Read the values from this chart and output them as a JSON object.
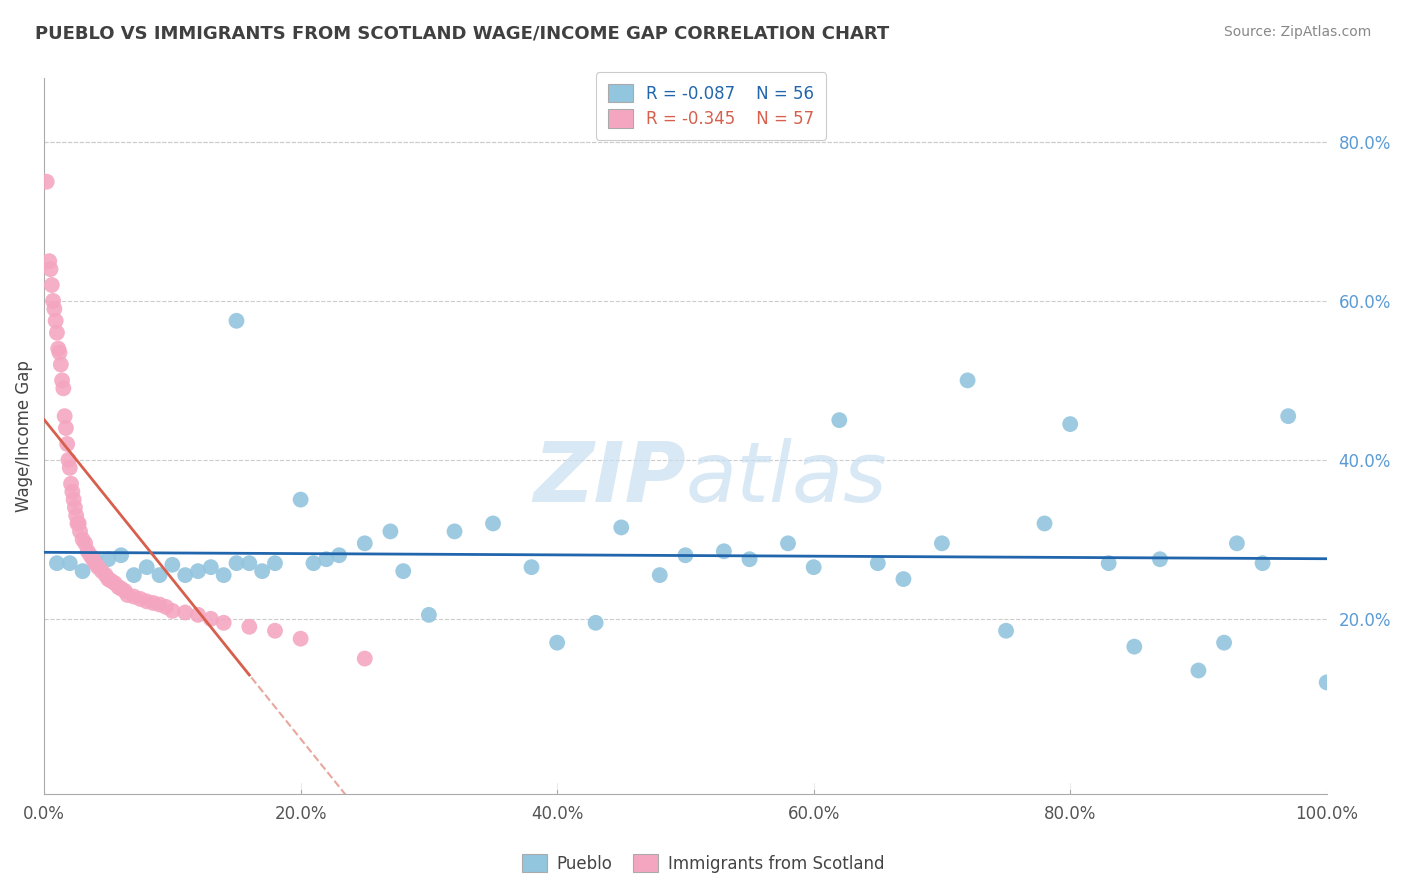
{
  "title": "PUEBLO VS IMMIGRANTS FROM SCOTLAND WAGE/INCOME GAP CORRELATION CHART",
  "source": "Source: ZipAtlas.com",
  "ylabel": "Wage/Income Gap",
  "xlim": [
    0.0,
    1.0
  ],
  "ylim": [
    -0.02,
    0.88
  ],
  "x_ticks": [
    0.0,
    0.2,
    0.4,
    0.6,
    0.8,
    1.0
  ],
  "x_tick_labels": [
    "0.0%",
    "20.0%",
    "40.0%",
    "60.0%",
    "80.0%",
    "100.0%"
  ],
  "y_ticks": [
    0.2,
    0.4,
    0.6,
    0.8
  ],
  "y_tick_labels": [
    "20.0%",
    "40.0%",
    "60.0%",
    "80.0%"
  ],
  "legend_blue_label": "Pueblo",
  "legend_pink_label": "Immigrants from Scotland",
  "R_blue": "-0.087",
  "N_blue": "56",
  "R_pink": "-0.345",
  "N_pink": "57",
  "blue_color": "#92c5de",
  "pink_color": "#f4a6c0",
  "blue_line_color": "#2166ac",
  "pink_line_color": "#d6604d",
  "watermark_color": "#c8dff0",
  "blue_x": [
    0.01,
    0.02,
    0.03,
    0.04,
    0.05,
    0.06,
    0.07,
    0.08,
    0.09,
    0.1,
    0.11,
    0.12,
    0.13,
    0.14,
    0.15,
    0.15,
    0.16,
    0.17,
    0.18,
    0.2,
    0.21,
    0.22,
    0.23,
    0.25,
    0.27,
    0.28,
    0.3,
    0.32,
    0.35,
    0.38,
    0.4,
    0.43,
    0.45,
    0.48,
    0.5,
    0.53,
    0.55,
    0.58,
    0.6,
    0.62,
    0.65,
    0.67,
    0.7,
    0.72,
    0.75,
    0.78,
    0.8,
    0.83,
    0.85,
    0.87,
    0.9,
    0.92,
    0.93,
    0.95,
    0.97,
    1.0
  ],
  "blue_y": [
    0.27,
    0.27,
    0.26,
    0.275,
    0.275,
    0.28,
    0.255,
    0.265,
    0.255,
    0.268,
    0.255,
    0.26,
    0.265,
    0.255,
    0.27,
    0.575,
    0.27,
    0.26,
    0.27,
    0.35,
    0.27,
    0.275,
    0.28,
    0.295,
    0.31,
    0.26,
    0.205,
    0.31,
    0.32,
    0.265,
    0.17,
    0.195,
    0.315,
    0.255,
    0.28,
    0.285,
    0.275,
    0.295,
    0.265,
    0.45,
    0.27,
    0.25,
    0.295,
    0.5,
    0.185,
    0.32,
    0.445,
    0.27,
    0.165,
    0.275,
    0.135,
    0.17,
    0.295,
    0.27,
    0.455,
    0.12
  ],
  "pink_x": [
    0.002,
    0.004,
    0.005,
    0.006,
    0.007,
    0.008,
    0.009,
    0.01,
    0.011,
    0.012,
    0.013,
    0.014,
    0.015,
    0.016,
    0.017,
    0.018,
    0.019,
    0.02,
    0.021,
    0.022,
    0.023,
    0.024,
    0.025,
    0.026,
    0.027,
    0.028,
    0.03,
    0.032,
    0.034,
    0.036,
    0.038,
    0.04,
    0.042,
    0.045,
    0.048,
    0.05,
    0.052,
    0.055,
    0.058,
    0.06,
    0.063,
    0.065,
    0.07,
    0.075,
    0.08,
    0.085,
    0.09,
    0.095,
    0.1,
    0.11,
    0.12,
    0.13,
    0.14,
    0.16,
    0.18,
    0.2,
    0.25
  ],
  "pink_y": [
    0.75,
    0.65,
    0.64,
    0.62,
    0.6,
    0.59,
    0.575,
    0.56,
    0.54,
    0.535,
    0.52,
    0.5,
    0.49,
    0.455,
    0.44,
    0.42,
    0.4,
    0.39,
    0.37,
    0.36,
    0.35,
    0.34,
    0.33,
    0.32,
    0.32,
    0.31,
    0.3,
    0.295,
    0.285,
    0.28,
    0.275,
    0.27,
    0.265,
    0.26,
    0.255,
    0.25,
    0.248,
    0.245,
    0.24,
    0.238,
    0.235,
    0.23,
    0.228,
    0.225,
    0.222,
    0.22,
    0.218,
    0.215,
    0.21,
    0.208,
    0.205,
    0.2,
    0.195,
    0.19,
    0.185,
    0.175,
    0.15
  ]
}
